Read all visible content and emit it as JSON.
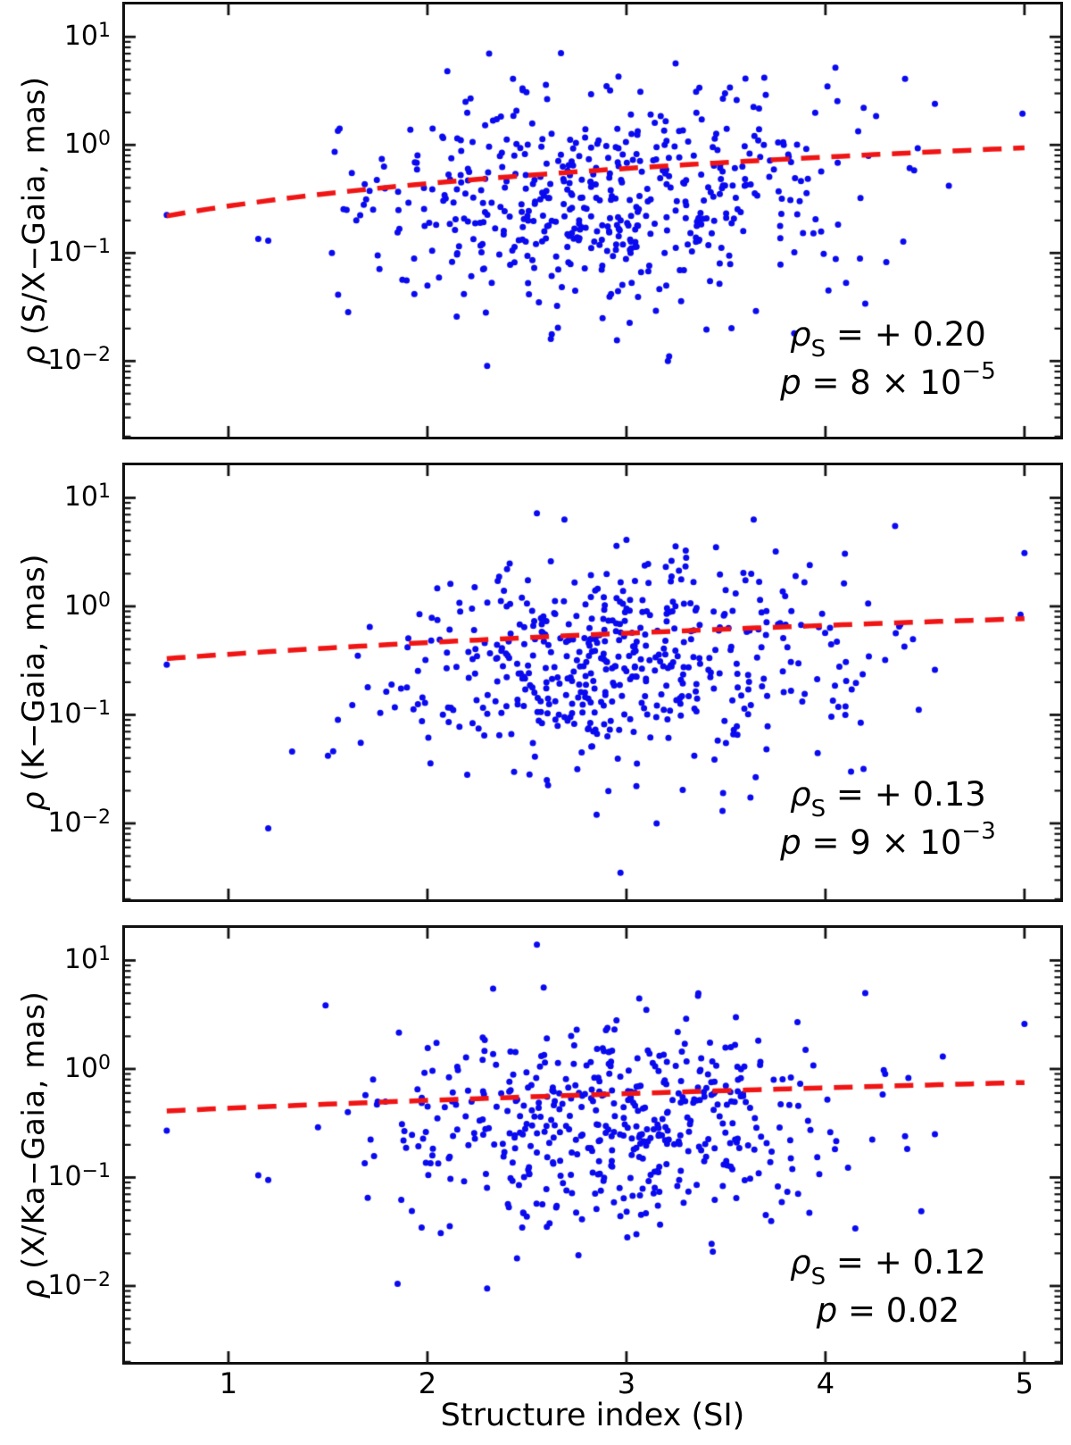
{
  "figure": {
    "background": "#ffffff",
    "xlabel": "Structure index (SI)"
  },
  "chart_data": {
    "type": "scatter",
    "xlabel": "Structure index (SI)",
    "xlim": [
      0.48,
      5.18
    ],
    "ylog_lim": [
      -2.7,
      1.3
    ],
    "x_ticks": [
      {
        "value": 1,
        "label": "1"
      },
      {
        "value": 2,
        "label": "2"
      },
      {
        "value": 3,
        "label": "3"
      },
      {
        "value": 4,
        "label": "4"
      },
      {
        "value": 5,
        "label": "5"
      }
    ],
    "y_ticks": [
      {
        "exp": 1,
        "base": "10",
        "exp_label": "1"
      },
      {
        "exp": 0,
        "base": "10",
        "exp_label": "0"
      },
      {
        "exp": -1,
        "base": "10",
        "exp_label": "−1"
      },
      {
        "exp": -2,
        "base": "10",
        "exp_label": "−2"
      }
    ],
    "colors": {
      "point": "#0a0af0",
      "trend": "#f01515",
      "frame": "#111111",
      "text": "#000000"
    },
    "panels": [
      {
        "id": "sx-gaia",
        "ylabel": {
          "symbol": "ρ",
          "rest": " (S/X−Gaia, mas)"
        },
        "stats": {
          "rho_symbol": "ρ",
          "rho_subscript": "S",
          "equals": "=",
          "rho_value": "+ 0.20",
          "p_symbol": "p",
          "p_mantissa": "8",
          "p_times": "×",
          "p_base": "10",
          "p_exponent": "−5"
        },
        "trend": {
          "model": "linear",
          "si_start": 0.69,
          "rho_start": 0.22,
          "si_end": 5.0,
          "rho_end": 0.94
        },
        "scatter": {
          "seed": 20,
          "n": 500,
          "x_mean": 2.92,
          "x_sd": 0.6,
          "x_min": 1.38,
          "x_max": 4.65,
          "x_ref": 2.92,
          "logy_center": -0.5,
          "logy_sd": 0.47,
          "logy_slope": 0.13,
          "logy_min": -2.0,
          "logy_max": 0.85
        },
        "outliers": [
          [
            0.69,
            0.225
          ],
          [
            1.15,
            0.135
          ],
          [
            1.2,
            0.13
          ],
          [
            1.52,
            0.1
          ],
          [
            1.55,
            1.35
          ],
          [
            1.62,
            0.55
          ],
          [
            1.68,
            0.28
          ],
          [
            1.75,
            0.095
          ],
          [
            1.85,
            0.155
          ],
          [
            1.95,
            0.8
          ],
          [
            2.0,
            0.05
          ],
          [
            2.1,
            4.8
          ],
          [
            2.15,
            1.15
          ],
          [
            2.31,
            7.0
          ],
          [
            2.43,
            4.1
          ],
          [
            2.3,
            0.009
          ],
          [
            2.56,
            0.035
          ],
          [
            2.62,
            0.016
          ],
          [
            2.88,
            0.025
          ],
          [
            2.9,
            3.5
          ],
          [
            2.96,
            4.3
          ],
          [
            3.07,
            3.1
          ],
          [
            3.2,
            0.05
          ],
          [
            3.35,
            3.1
          ],
          [
            3.42,
            0.055
          ],
          [
            3.52,
            3.4
          ],
          [
            3.7,
            2.9
          ],
          [
            4.05,
            5.2
          ],
          [
            4.2,
            0.034
          ],
          [
            4.4,
            4.1
          ],
          [
            4.55,
            2.4
          ],
          [
            4.62,
            0.42
          ],
          [
            4.99,
            1.95
          ]
        ]
      },
      {
        "id": "k-gaia",
        "ylabel": {
          "symbol": "ρ",
          "rest": " (K−Gaia, mas)"
        },
        "stats": {
          "rho_symbol": "ρ",
          "rho_subscript": "S",
          "equals": "=",
          "rho_value": "+ 0.13",
          "p_symbol": "p",
          "p_mantissa": "9",
          "p_times": "×",
          "p_base": "10",
          "p_exponent": "−3"
        },
        "trend": {
          "model": "linear",
          "si_start": 0.69,
          "rho_start": 0.33,
          "si_end": 5.0,
          "rho_end": 0.77
        },
        "scatter": {
          "seed": 77,
          "n": 490,
          "x_mean": 2.95,
          "x_sd": 0.6,
          "x_min": 1.4,
          "x_max": 4.62,
          "x_ref": 2.95,
          "logy_center": -0.5,
          "logy_sd": 0.46,
          "logy_slope": 0.085,
          "logy_min": -2.0,
          "logy_max": 0.8
        },
        "outliers": [
          [
            0.69,
            0.29
          ],
          [
            1.2,
            0.009
          ],
          [
            1.32,
            0.046
          ],
          [
            1.5,
            0.042
          ],
          [
            1.55,
            0.09
          ],
          [
            1.65,
            0.35
          ],
          [
            1.7,
            0.18
          ],
          [
            1.9,
            0.42
          ],
          [
            2.05,
            0.75
          ],
          [
            2.2,
            0.028
          ],
          [
            2.4,
            2.2
          ],
          [
            2.55,
            7.2
          ],
          [
            2.6,
            0.025
          ],
          [
            2.62,
            2.6
          ],
          [
            2.85,
            0.012
          ],
          [
            2.97,
            0.0035
          ],
          [
            2.95,
            3.6
          ],
          [
            3.0,
            4.1
          ],
          [
            3.05,
            0.022
          ],
          [
            3.3,
            2.8
          ],
          [
            3.45,
            3.5
          ],
          [
            3.5,
            0.055
          ],
          [
            3.75,
            3.2
          ],
          [
            3.85,
            1.9
          ],
          [
            4.1,
            0.1
          ],
          [
            4.3,
            0.32
          ],
          [
            4.35,
            5.5
          ],
          [
            4.55,
            0.26
          ],
          [
            4.98,
            0.84
          ],
          [
            5.0,
            3.1
          ]
        ]
      },
      {
        "id": "xka-gaia",
        "ylabel": {
          "symbol": "ρ",
          "rest": " (X/Ka−Gaia, mas)"
        },
        "stats": {
          "rho_symbol": "ρ",
          "rho_subscript": "S",
          "equals": "=",
          "rho_value": "+ 0.12",
          "p_symbol": "p",
          "p_value": "0.02"
        },
        "trend": {
          "model": "linear",
          "si_start": 0.69,
          "rho_start": 0.41,
          "si_end": 5.0,
          "rho_end": 0.75
        },
        "scatter": {
          "seed": 140,
          "n": 470,
          "x_mean": 2.95,
          "x_sd": 0.58,
          "x_min": 1.42,
          "x_max": 4.6,
          "x_ref": 2.95,
          "logy_center": -0.48,
          "logy_sd": 0.45,
          "logy_slope": 0.06,
          "logy_min": -1.95,
          "logy_max": 0.75
        },
        "outliers": [
          [
            0.69,
            0.27
          ],
          [
            1.15,
            0.105
          ],
          [
            1.2,
            0.095
          ],
          [
            1.45,
            0.29
          ],
          [
            1.6,
            0.4
          ],
          [
            1.7,
            0.065
          ],
          [
            1.75,
            0.5
          ],
          [
            1.85,
            0.0105
          ],
          [
            1.95,
            0.65
          ],
          [
            2.05,
            0.35
          ],
          [
            2.15,
            1.05
          ],
          [
            2.3,
            0.0095
          ],
          [
            2.33,
            5.5
          ],
          [
            2.45,
            0.018
          ],
          [
            2.55,
            14.0
          ],
          [
            2.6,
            0.035
          ],
          [
            2.75,
            2.3
          ],
          [
            2.95,
            2.8
          ],
          [
            3.05,
            0.03
          ],
          [
            3.1,
            3.5
          ],
          [
            3.3,
            2.9
          ],
          [
            3.55,
            3.0
          ],
          [
            3.7,
            0.045
          ],
          [
            3.9,
            1.5
          ],
          [
            4.15,
            0.034
          ],
          [
            4.2,
            5.0
          ],
          [
            4.3,
            0.9
          ],
          [
            4.4,
            0.24
          ],
          [
            4.55,
            0.25
          ],
          [
            5.0,
            2.6
          ]
        ]
      }
    ]
  }
}
